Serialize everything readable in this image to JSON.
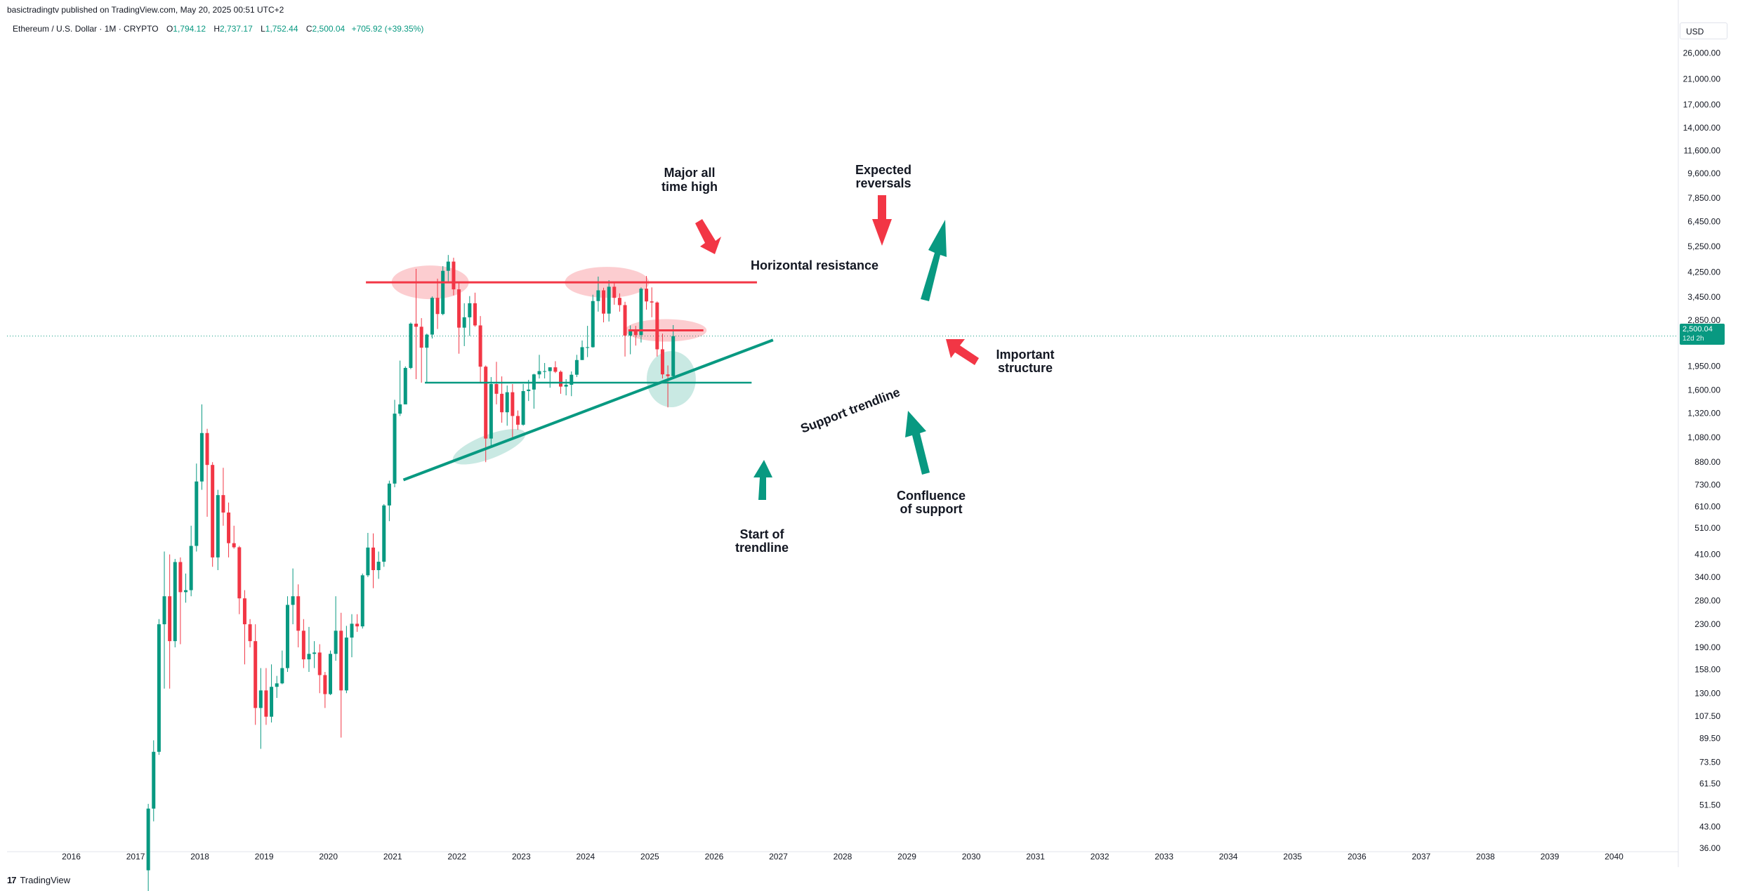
{
  "publisher_line": "basictradingtv published on TradingView.com, May 20, 2025 00:51 UTC+2",
  "legend": {
    "symbol": "Ethereum / U.S. Dollar · 1M · CRYPTO",
    "open_label": "O",
    "open": "1,794.12",
    "high_label": "H",
    "high": "2,737.17",
    "low_label": "L",
    "low": "1,752.44",
    "close_label": "C",
    "close": "2,500.04",
    "change": "+705.92 (+39.35%)"
  },
  "currency": "USD",
  "price_tag": {
    "price": "2,500.04",
    "countdown": "12d 2h"
  },
  "footer": {
    "logo": "17",
    "brand": "TradingView"
  },
  "colors": {
    "up": "#089981",
    "down": "#f23645",
    "annotation_red": "#f23645",
    "annotation_green": "#089981"
  },
  "chart_data": {
    "type": "candlestick",
    "scale": "log",
    "ylim": [
      35,
      32000
    ],
    "xlim": [
      "2015-07",
      "2040-12"
    ],
    "y_ticks": [
      36,
      43,
      51.5,
      61.5,
      73.5,
      89.5,
      107.5,
      130,
      158,
      190,
      230,
      280,
      340,
      410,
      510,
      610,
      730,
      880,
      1080,
      1320,
      1600,
      1950,
      2850,
      3450,
      4250,
      5250,
      6450,
      7850,
      9600,
      11600,
      14000,
      17000,
      21000,
      26000
    ],
    "y_tick_labels": [
      "36.00",
      "43.00",
      "51.50",
      "61.50",
      "73.50",
      "89.50",
      "107.50",
      "130.00",
      "158.00",
      "190.00",
      "230.00",
      "280.00",
      "340.00",
      "410.00",
      "510.00",
      "610.00",
      "730.00",
      "880.00",
      "1,080.00",
      "1,320.00",
      "1,600.00",
      "1,950.00",
      "2,850.00",
      "3,450.00",
      "4,250.00",
      "5,250.00",
      "6,450.00",
      "7,850.00",
      "9,600.00",
      "11,600.00",
      "14,000.00",
      "17,000.00",
      "21,000.00",
      "26,000.00"
    ],
    "x_ticks": [
      "2016",
      "2017",
      "2018",
      "2019",
      "2020",
      "2021",
      "2022",
      "2023",
      "2024",
      "2025",
      "2026",
      "2027",
      "2028",
      "2029",
      "2030",
      "2031",
      "2032",
      "2033",
      "2034",
      "2035",
      "2036",
      "2037",
      "2038",
      "2039",
      "2040"
    ],
    "last_price": 2500.04,
    "candles": [
      [
        "2017-03",
        30,
        52,
        25,
        50
      ],
      [
        "2017-04",
        50,
        88,
        45,
        80
      ],
      [
        "2017-05",
        80,
        240,
        78,
        230
      ],
      [
        "2017-06",
        230,
        420,
        135,
        290
      ],
      [
        "2017-07",
        290,
        410,
        135,
        200
      ],
      [
        "2017-08",
        200,
        395,
        190,
        385
      ],
      [
        "2017-09",
        385,
        400,
        195,
        300
      ],
      [
        "2017-10",
        300,
        350,
        275,
        305
      ],
      [
        "2017-11",
        305,
        520,
        290,
        440
      ],
      [
        "2017-12",
        440,
        870,
        420,
        750
      ],
      [
        "2018-01",
        750,
        1420,
        700,
        1120
      ],
      [
        "2018-02",
        1120,
        1160,
        560,
        860
      ],
      [
        "2018-03",
        860,
        880,
        370,
        400
      ],
      [
        "2018-04",
        400,
        700,
        360,
        670
      ],
      [
        "2018-05",
        670,
        840,
        520,
        580
      ],
      [
        "2018-06",
        580,
        630,
        400,
        450
      ],
      [
        "2018-07",
        450,
        520,
        430,
        435
      ],
      [
        "2018-08",
        435,
        440,
        250,
        285
      ],
      [
        "2018-09",
        285,
        305,
        165,
        230
      ],
      [
        "2018-10",
        230,
        240,
        190,
        200
      ],
      [
        "2018-11",
        200,
        230,
        100,
        115
      ],
      [
        "2018-12",
        115,
        160,
        82,
        133
      ],
      [
        "2019-01",
        133,
        160,
        100,
        107
      ],
      [
        "2019-02",
        107,
        165,
        102,
        137
      ],
      [
        "2019-03",
        137,
        150,
        125,
        141
      ],
      [
        "2019-04",
        141,
        185,
        140,
        160
      ],
      [
        "2019-05",
        160,
        290,
        155,
        270
      ],
      [
        "2019-06",
        270,
        365,
        230,
        290
      ],
      [
        "2019-07",
        290,
        320,
        190,
        218
      ],
      [
        "2019-08",
        218,
        240,
        160,
        172
      ],
      [
        "2019-09",
        172,
        225,
        155,
        180
      ],
      [
        "2019-10",
        180,
        200,
        160,
        182
      ],
      [
        "2019-11",
        182,
        195,
        130,
        151
      ],
      [
        "2019-12",
        151,
        155,
        115,
        129
      ],
      [
        "2020-01",
        129,
        185,
        128,
        180
      ],
      [
        "2020-02",
        180,
        290,
        170,
        218
      ],
      [
        "2020-03",
        218,
        253,
        90,
        133
      ],
      [
        "2020-04",
        133,
        227,
        130,
        206
      ],
      [
        "2020-05",
        206,
        250,
        175,
        231
      ],
      [
        "2020-06",
        231,
        250,
        216,
        226
      ],
      [
        "2020-07",
        226,
        350,
        222,
        345
      ],
      [
        "2020-08",
        345,
        490,
        340,
        434
      ],
      [
        "2020-09",
        434,
        488,
        310,
        360
      ],
      [
        "2020-10",
        360,
        420,
        335,
        386
      ],
      [
        "2020-11",
        386,
        622,
        370,
        615
      ],
      [
        "2020-12",
        615,
        755,
        540,
        737
      ],
      [
        "2021-01",
        737,
        1475,
        715,
        1315
      ],
      [
        "2021-02",
        1315,
        2040,
        1290,
        1420
      ],
      [
        "2021-03",
        1420,
        1945,
        1440,
        1920
      ],
      [
        "2021-04",
        1920,
        2797,
        1900,
        2770
      ],
      [
        "2021-05",
        2770,
        4362,
        1750,
        2700
      ],
      [
        "2021-06",
        2700,
        2900,
        1700,
        2270
      ],
      [
        "2021-07",
        2270,
        2550,
        1710,
        2530
      ],
      [
        "2021-08",
        2530,
        3470,
        2450,
        3430
      ],
      [
        "2021-09",
        3430,
        4020,
        2650,
        3000
      ],
      [
        "2021-10",
        3000,
        4460,
        2970,
        4290
      ],
      [
        "2021-11",
        4290,
        4891,
        3900,
        4630
      ],
      [
        "2021-12",
        4630,
        4780,
        3500,
        3680
      ],
      [
        "2022-01",
        3680,
        3880,
        2160,
        2680
      ],
      [
        "2022-02",
        2680,
        3280,
        2300,
        2920
      ],
      [
        "2022-03",
        2920,
        3480,
        2500,
        3280
      ],
      [
        "2022-04",
        3280,
        3580,
        2700,
        2730
      ],
      [
        "2022-05",
        2730,
        2950,
        1700,
        1940
      ],
      [
        "2022-06",
        1940,
        1960,
        880,
        1070
      ],
      [
        "2022-07",
        1070,
        1780,
        1000,
        1680
      ],
      [
        "2022-08",
        1680,
        2020,
        1420,
        1550
      ],
      [
        "2022-09",
        1550,
        1790,
        1220,
        1330
      ],
      [
        "2022-10",
        1330,
        1660,
        1190,
        1570
      ],
      [
        "2022-11",
        1570,
        1680,
        1070,
        1290
      ],
      [
        "2022-12",
        1290,
        1350,
        1150,
        1200
      ],
      [
        "2023-01",
        1200,
        1680,
        1190,
        1585
      ],
      [
        "2023-02",
        1585,
        1740,
        1460,
        1605
      ],
      [
        "2023-03",
        1605,
        1830,
        1370,
        1820
      ],
      [
        "2023-04",
        1820,
        2140,
        1760,
        1870
      ],
      [
        "2023-05",
        1870,
        2000,
        1760,
        1870
      ],
      [
        "2023-06",
        1870,
        1930,
        1630,
        1930
      ],
      [
        "2023-07",
        1930,
        2030,
        1840,
        1860
      ],
      [
        "2023-08",
        1860,
        1880,
        1550,
        1645
      ],
      [
        "2023-09",
        1645,
        1750,
        1530,
        1670
      ],
      [
        "2023-10",
        1670,
        1865,
        1520,
        1815
      ],
      [
        "2023-11",
        1815,
        2140,
        1780,
        2050
      ],
      [
        "2023-12",
        2050,
        2410,
        2050,
        2280
      ],
      [
        "2024-01",
        2280,
        2720,
        2100,
        2280
      ],
      [
        "2024-02",
        2280,
        3520,
        2270,
        3340
      ],
      [
        "2024-03",
        3340,
        4090,
        3060,
        3650
      ],
      [
        "2024-04",
        3650,
        3730,
        2800,
        3010
      ],
      [
        "2024-05",
        3010,
        3970,
        2820,
        3760
      ],
      [
        "2024-06",
        3760,
        3890,
        3240,
        3430
      ],
      [
        "2024-07",
        3430,
        3560,
        3060,
        3230
      ],
      [
        "2024-08",
        3230,
        3320,
        2110,
        2510
      ],
      [
        "2024-09",
        2510,
        2730,
        2150,
        2600
      ],
      [
        "2024-10",
        2600,
        2720,
        2310,
        2520
      ],
      [
        "2024-11",
        2520,
        3740,
        2370,
        3700
      ],
      [
        "2024-12",
        3700,
        4110,
        3110,
        3330
      ],
      [
        "2025-01",
        3330,
        3740,
        2920,
        3300
      ],
      [
        "2025-02",
        3300,
        3330,
        2110,
        2240
      ],
      [
        "2025-03",
        2240,
        2550,
        1760,
        1820
      ],
      [
        "2025-04",
        1820,
        1960,
        1385,
        1794
      ],
      [
        "2025-05",
        1794.12,
        2737.17,
        1752.44,
        2500.04
      ]
    ],
    "annotations": {
      "horizontal_resistance": {
        "label": "Horizontal resistance",
        "price": 3900,
        "from": "2020-08",
        "to": "2026-09"
      },
      "important_structure_line": {
        "price": 2620,
        "from": "2024-09",
        "to": "2025-11"
      },
      "support_level": {
        "price": 1700,
        "from": "2021-07",
        "to": "2026-08"
      },
      "support_trendline": {
        "label": "Support trendline",
        "from": [
          "2021-03",
          760
        ],
        "to": [
          "2026-12",
          2420
        ]
      },
      "texts": [
        "Major all time high",
        "Expected reversals",
        "Important structure",
        "Start of trendline",
        "Confluence of support"
      ]
    }
  }
}
